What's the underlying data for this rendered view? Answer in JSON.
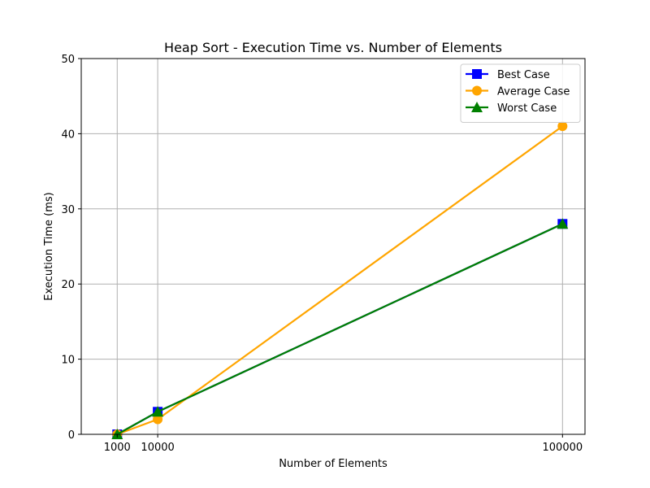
{
  "chart_data": {
    "type": "line",
    "title": "Heap Sort - Execution Time vs. Number of Elements",
    "xlabel": "Number of Elements",
    "ylabel": "Execution Time (ms)",
    "x": [
      1000,
      10000,
      100000
    ],
    "xticks": [
      1000,
      10000,
      100000
    ],
    "xtick_labels": [
      "1000",
      "10000",
      "100000"
    ],
    "yticks": [
      0,
      10,
      20,
      30,
      40,
      50
    ],
    "ytick_labels": [
      "0",
      "10",
      "20",
      "30",
      "40",
      "50"
    ],
    "xlim": [
      -7000,
      105000
    ],
    "ylim": [
      0,
      50
    ],
    "grid": true,
    "legend_position": "top-right",
    "series": [
      {
        "name": "Best Case",
        "values": [
          0,
          3,
          28
        ],
        "color": "#0000ff",
        "marker": "square"
      },
      {
        "name": "Average Case",
        "values": [
          0,
          2,
          41
        ],
        "color": "#ffa500",
        "marker": "circle"
      },
      {
        "name": "Worst Case",
        "values": [
          0,
          3,
          28
        ],
        "color": "#008000",
        "marker": "triangle"
      }
    ]
  }
}
